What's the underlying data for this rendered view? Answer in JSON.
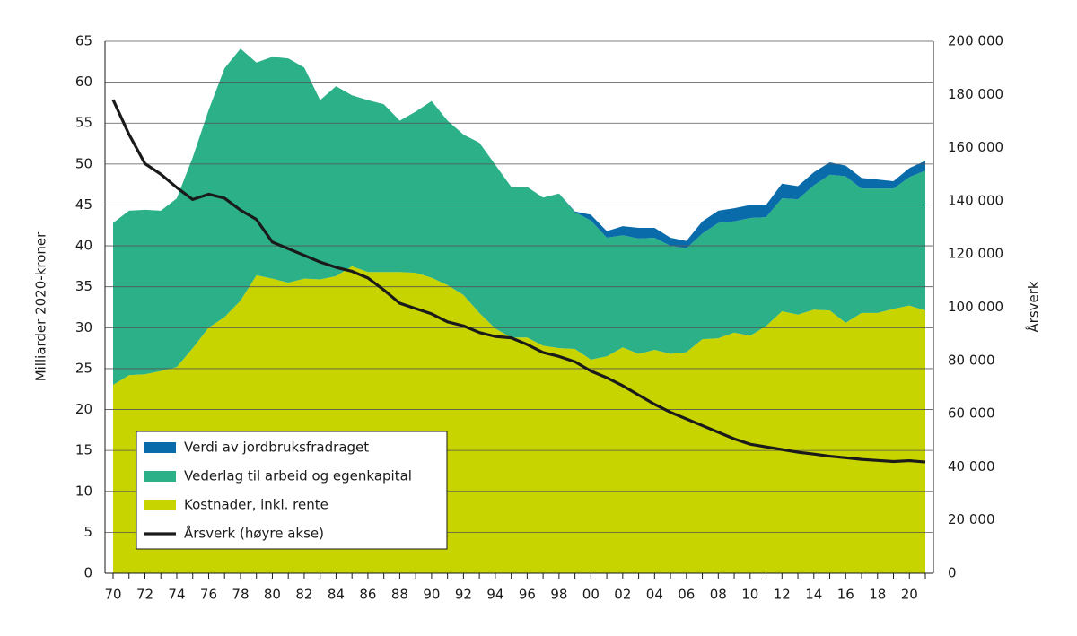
{
  "chart_data": {
    "type": "stacked-area",
    "y_label": "Milliarder 2020-kroner",
    "y2_label": "Årsverk",
    "categories": [
      "70",
      null,
      "72",
      null,
      "74",
      null,
      "76",
      null,
      "78",
      null,
      "80",
      null,
      "82",
      null,
      "84",
      null,
      "86",
      null,
      "88",
      null,
      "90",
      null,
      "92",
      null,
      "94",
      null,
      "96",
      null,
      "98",
      null,
      "00",
      null,
      "02",
      null,
      "04",
      null,
      "06",
      null,
      "08",
      null,
      "10",
      null,
      "12",
      null,
      "14",
      null,
      "16",
      null,
      "18",
      null,
      "20",
      null
    ],
    "series": [
      {
        "name": "Kostnader, inkl. rente",
        "color": "#c8d400",
        "values": [
          23.0,
          24.2,
          24.3,
          24.7,
          25.2,
          27.5,
          30.0,
          31.3,
          33.3,
          36.4,
          36.0,
          35.5,
          36.0,
          35.9,
          36.3,
          37.5,
          36.8,
          36.8,
          36.8,
          36.7,
          36.1,
          35.2,
          34.0,
          31.8,
          29.9,
          28.8,
          28.8,
          27.8,
          27.5,
          27.4,
          26.1,
          26.5,
          27.6,
          26.8,
          27.3,
          26.8,
          27.0,
          28.6,
          28.7,
          29.4,
          29.0,
          30.2,
          32.0,
          31.6,
          32.2,
          32.1,
          30.6,
          31.8,
          31.8,
          32.3,
          32.7,
          32.1
        ]
      },
      {
        "name": "Vederlag til arbeid og egenkapital",
        "color": "#2bb088",
        "values": [
          19.8,
          20.1,
          20.1,
          19.6,
          20.6,
          23.3,
          26.6,
          30.4,
          30.8,
          26.0,
          27.1,
          27.4,
          25.8,
          21.9,
          23.2,
          20.9,
          21.0,
          20.5,
          18.5,
          19.7,
          21.6,
          20.1,
          19.6,
          20.8,
          20.0,
          18.4,
          18.4,
          18.1,
          18.9,
          16.7,
          17.0,
          14.5,
          13.7,
          14.1,
          13.7,
          13.2,
          12.7,
          12.9,
          14.1,
          13.6,
          14.4,
          13.3,
          13.8,
          14.1,
          15.2,
          16.6,
          17.9,
          15.2,
          15.2,
          14.7,
          15.7,
          17.1
        ]
      },
      {
        "name": "Verdi av jordbruksfradraget",
        "color": "#0a6bab",
        "values": [
          0,
          0,
          0,
          0,
          0,
          0,
          0,
          0,
          0,
          0,
          0,
          0,
          0,
          0,
          0,
          0,
          0,
          0,
          0,
          0,
          0,
          0,
          0,
          0,
          0,
          0,
          0,
          0,
          0,
          0.1,
          0.7,
          0.8,
          1.1,
          1.3,
          1.2,
          1.0,
          0.9,
          1.5,
          1.5,
          1.6,
          1.6,
          1.5,
          1.8,
          1.6,
          1.6,
          1.5,
          1.3,
          1.3,
          1.1,
          0.9,
          1.1,
          1.2
        ]
      },
      {
        "name": "Årsverk (høyre akse)",
        "color": "#1a1a1a",
        "type": "line",
        "axis": "y2",
        "values": [
          178000,
          165000,
          154000,
          150000,
          145000,
          140500,
          142500,
          141000,
          136500,
          133000,
          124500,
          122000,
          119500,
          117000,
          115000,
          113500,
          111000,
          106500,
          101500,
          99500,
          97500,
          94500,
          93000,
          90500,
          89000,
          88500,
          86000,
          83000,
          81500,
          79500,
          76000,
          73500,
          70500,
          67000,
          63500,
          60500,
          58000,
          55500,
          53000,
          50500,
          48500,
          47500,
          46500,
          45500,
          44800,
          44000,
          43400,
          42800,
          42400,
          42000,
          42300,
          41800
        ]
      }
    ],
    "ylim": [
      0,
      65
    ],
    "yticks": [
      0,
      5,
      10,
      15,
      20,
      25,
      30,
      35,
      40,
      45,
      50,
      55,
      60,
      65
    ],
    "y2lim": [
      0,
      200000
    ],
    "y2ticks": [
      0,
      {
        "value": 20000,
        "label": "20 000"
      },
      {
        "value": 40000,
        "label": "40 000"
      },
      {
        "value": 60000,
        "label": "60 000"
      },
      {
        "value": 80000,
        "label": "80 000"
      },
      {
        "value": 100000,
        "label": "100 000"
      },
      {
        "value": 120000,
        "label": "120 000"
      },
      {
        "value": 140000,
        "label": "140 000"
      },
      {
        "value": 160000,
        "label": "160 000"
      },
      {
        "value": 180000,
        "label": "180 000"
      },
      {
        "value": 200000,
        "label": "200 000"
      }
    ],
    "grid": true,
    "legend": "lower-left"
  }
}
